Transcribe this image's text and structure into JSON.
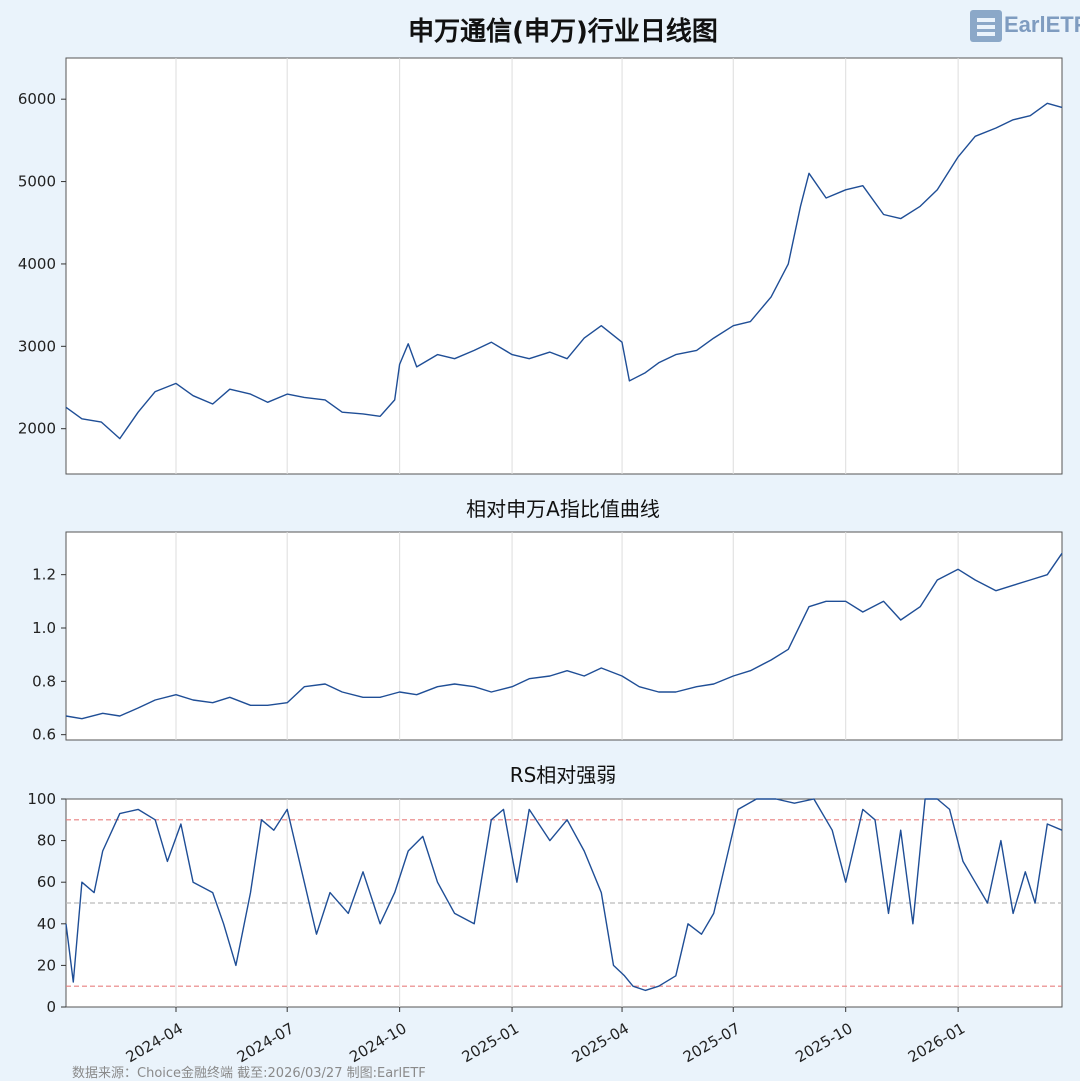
{
  "logo_text": "EarlETF",
  "footer": "数据来源：Choice金融终端 截至:2026/03/27 制图:EarlETF",
  "colors": {
    "background": "#eaf3fb",
    "plot_bg": "#ffffff",
    "line": "#1f4e96",
    "grid": "#dddddd",
    "ref_red": "#e88080",
    "ref_gray": "#bbbbbb"
  },
  "chart_data": [
    {
      "type": "line",
      "title": "申万通信(申万)行业日线图",
      "ylim": [
        1450,
        6500
      ],
      "yticks": [
        2000,
        3000,
        4000,
        5000,
        6000
      ],
      "x": [
        "2024-01-02",
        "2024-01-15",
        "2024-01-31",
        "2024-02-15",
        "2024-03-01",
        "2024-03-15",
        "2024-04-01",
        "2024-04-15",
        "2024-05-01",
        "2024-05-15",
        "2024-06-01",
        "2024-06-15",
        "2024-07-01",
        "2024-07-15",
        "2024-08-01",
        "2024-08-15",
        "2024-09-01",
        "2024-09-15",
        "2024-09-27",
        "2024-10-01",
        "2024-10-08",
        "2024-10-15",
        "2024-11-01",
        "2024-11-15",
        "2024-12-01",
        "2024-12-15",
        "2025-01-01",
        "2025-01-15",
        "2025-02-01",
        "2025-02-15",
        "2025-03-01",
        "2025-03-15",
        "2025-04-01",
        "2025-04-07",
        "2025-04-20",
        "2025-05-01",
        "2025-05-15",
        "2025-06-01",
        "2025-06-15",
        "2025-07-01",
        "2025-07-15",
        "2025-08-01",
        "2025-08-15",
        "2025-08-25",
        "2025-09-01",
        "2025-09-15",
        "2025-10-01",
        "2025-10-15",
        "2025-11-01",
        "2025-11-15",
        "2025-12-01",
        "2025-12-15",
        "2026-01-01",
        "2026-01-15",
        "2026-02-01",
        "2026-02-15",
        "2026-03-01",
        "2026-03-15",
        "2026-03-27"
      ],
      "series": [
        {
          "values": [
            2260,
            2120,
            2080,
            1880,
            2200,
            2450,
            2550,
            2400,
            2300,
            2480,
            2420,
            2320,
            2420,
            2380,
            2350,
            2200,
            2180,
            2150,
            2350,
            2780,
            3030,
            2750,
            2900,
            2850,
            2950,
            3050,
            2900,
            2850,
            2930,
            2850,
            3100,
            3250,
            3050,
            2580,
            2680,
            2800,
            2900,
            2950,
            3100,
            3250,
            3300,
            3600,
            4000,
            4700,
            5100,
            4800,
            4900,
            4950,
            4600,
            4550,
            4700,
            4900,
            5300,
            5550,
            5650,
            5750,
            5800,
            5950,
            5900
          ]
        }
      ]
    },
    {
      "type": "line",
      "title": "相对申万A指比值曲线",
      "ylim": [
        0.58,
        1.36
      ],
      "yticks": [
        0.6,
        0.8,
        1.0,
        1.2
      ],
      "x": [
        "2024-01-02",
        "2024-01-15",
        "2024-02-01",
        "2024-02-15",
        "2024-03-01",
        "2024-03-15",
        "2024-04-01",
        "2024-04-15",
        "2024-05-01",
        "2024-05-15",
        "2024-06-01",
        "2024-06-15",
        "2024-07-01",
        "2024-07-15",
        "2024-08-01",
        "2024-08-15",
        "2024-09-01",
        "2024-09-15",
        "2024-10-01",
        "2024-10-15",
        "2024-11-01",
        "2024-11-15",
        "2024-12-01",
        "2024-12-15",
        "2025-01-01",
        "2025-01-15",
        "2025-02-01",
        "2025-02-15",
        "2025-03-01",
        "2025-03-15",
        "2025-04-01",
        "2025-04-15",
        "2025-05-01",
        "2025-05-15",
        "2025-06-01",
        "2025-06-15",
        "2025-07-01",
        "2025-07-15",
        "2025-08-01",
        "2025-08-15",
        "2025-09-01",
        "2025-09-15",
        "2025-10-01",
        "2025-10-15",
        "2025-11-01",
        "2025-11-15",
        "2025-12-01",
        "2025-12-15",
        "2026-01-01",
        "2026-01-15",
        "2026-02-01",
        "2026-02-15",
        "2026-03-01",
        "2026-03-15",
        "2026-03-27"
      ],
      "series": [
        {
          "values": [
            0.67,
            0.66,
            0.68,
            0.67,
            0.7,
            0.73,
            0.75,
            0.73,
            0.72,
            0.74,
            0.71,
            0.71,
            0.72,
            0.78,
            0.79,
            0.76,
            0.74,
            0.74,
            0.76,
            0.75,
            0.78,
            0.79,
            0.78,
            0.76,
            0.78,
            0.81,
            0.82,
            0.84,
            0.82,
            0.85,
            0.82,
            0.78,
            0.76,
            0.76,
            0.78,
            0.79,
            0.82,
            0.84,
            0.88,
            0.92,
            1.08,
            1.1,
            1.1,
            1.06,
            1.1,
            1.03,
            1.08,
            1.18,
            1.22,
            1.18,
            1.14,
            1.16,
            1.18,
            1.2,
            1.28
          ]
        }
      ]
    },
    {
      "type": "line",
      "title": "RS相对强弱",
      "ylim": [
        0,
        100
      ],
      "yticks": [
        0,
        20,
        40,
        60,
        80,
        100
      ],
      "reference_lines": [
        {
          "y": 90,
          "color": "#e88080",
          "style": "dashed"
        },
        {
          "y": 50,
          "color": "#bbbbbb",
          "style": "dashed"
        },
        {
          "y": 10,
          "color": "#e88080",
          "style": "dashed"
        }
      ],
      "xticks": [
        "2024-04",
        "2024-07",
        "2024-10",
        "2025-01",
        "2025-04",
        "2025-07",
        "2025-10",
        "2026-01"
      ],
      "x": [
        "2024-01-02",
        "2024-01-08",
        "2024-01-15",
        "2024-01-25",
        "2024-02-01",
        "2024-02-15",
        "2024-03-01",
        "2024-03-15",
        "2024-03-25",
        "2024-04-05",
        "2024-04-15",
        "2024-05-01",
        "2024-05-10",
        "2024-05-20",
        "2024-06-01",
        "2024-06-10",
        "2024-06-20",
        "2024-07-01",
        "2024-07-15",
        "2024-07-25",
        "2024-08-05",
        "2024-08-20",
        "2024-09-01",
        "2024-09-15",
        "2024-09-27",
        "2024-10-08",
        "2024-10-20",
        "2024-11-01",
        "2024-11-15",
        "2024-12-01",
        "2024-12-15",
        "2024-12-25",
        "2025-01-05",
        "2025-01-15",
        "2025-02-01",
        "2025-02-15",
        "2025-03-01",
        "2025-03-15",
        "2025-03-25",
        "2025-04-03",
        "2025-04-10",
        "2025-04-20",
        "2025-05-01",
        "2025-05-15",
        "2025-05-25",
        "2025-06-05",
        "2025-06-15",
        "2025-06-25",
        "2025-07-05",
        "2025-07-20",
        "2025-08-05",
        "2025-08-20",
        "2025-09-05",
        "2025-09-20",
        "2025-10-01",
        "2025-10-15",
        "2025-10-25",
        "2025-11-05",
        "2025-11-15",
        "2025-11-25",
        "2025-12-05",
        "2025-12-15",
        "2025-12-25",
        "2026-01-05",
        "2026-01-15",
        "2026-01-25",
        "2026-02-05",
        "2026-02-15",
        "2026-02-25",
        "2026-03-05",
        "2026-03-15",
        "2026-03-27"
      ],
      "series": [
        {
          "values": [
            40,
            12,
            60,
            55,
            75,
            93,
            95,
            90,
            70,
            88,
            60,
            55,
            40,
            20,
            55,
            90,
            85,
            95,
            60,
            35,
            55,
            45,
            65,
            40,
            55,
            75,
            82,
            60,
            45,
            40,
            90,
            95,
            60,
            95,
            80,
            90,
            75,
            55,
            20,
            15,
            10,
            8,
            10,
            15,
            40,
            35,
            45,
            70,
            95,
            100,
            100,
            98,
            100,
            85,
            60,
            95,
            90,
            45,
            85,
            40,
            100,
            100,
            95,
            70,
            60,
            50,
            80,
            45,
            65,
            50,
            88,
            85
          ]
        }
      ]
    }
  ]
}
